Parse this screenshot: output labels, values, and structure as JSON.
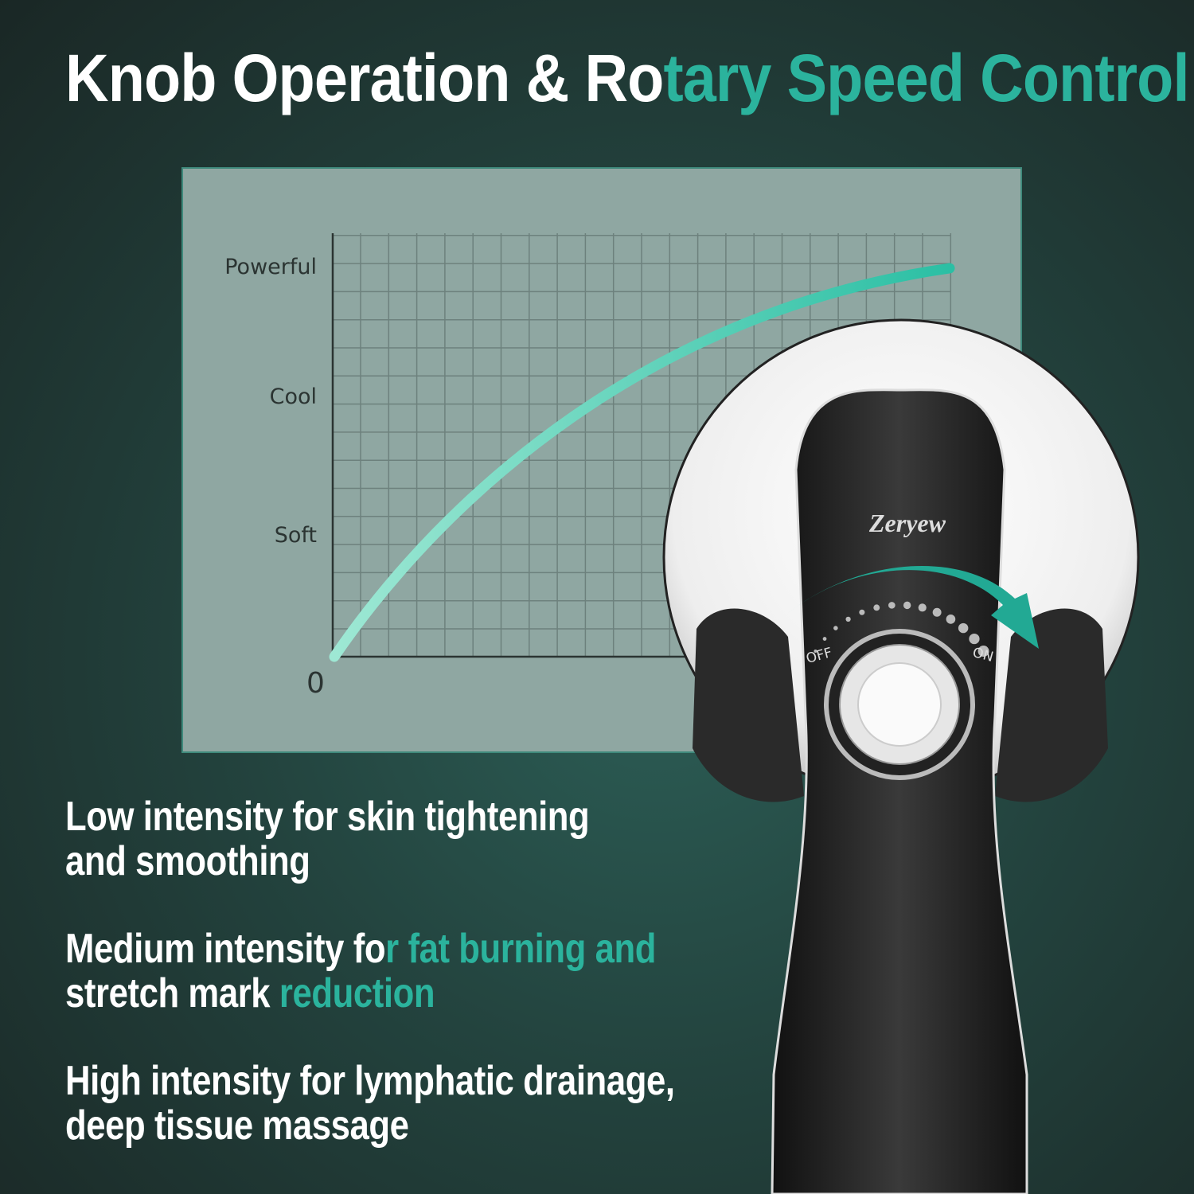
{
  "title": {
    "white": "Knob Operation & Ro",
    "teal": "tary Speed Control"
  },
  "chart": {
    "y_labels": [
      "Powerful",
      "Cool",
      "Soft"
    ],
    "origin_label": "0"
  },
  "device": {
    "brand": "Zeryew",
    "off_label": "OFF",
    "on_label": "ON"
  },
  "features": [
    {
      "white": "Low intensity for skin tightening",
      "teal": "",
      "line2_white": "and smoothing",
      "line2_teal": ""
    },
    {
      "white": "Medium intensity fo",
      "teal": "r fat burning and",
      "line2_white": "stretch mark ",
      "line2_teal": "reduction"
    },
    {
      "white": "",
      "teal": "High intensity for lymphatic drainage,",
      "line2_white": "",
      "line2_teal": "deep tissue massage"
    }
  ],
  "colors": {
    "accent": "#2bb39d",
    "background": "#23433e",
    "panel": "#8fa7a2"
  }
}
